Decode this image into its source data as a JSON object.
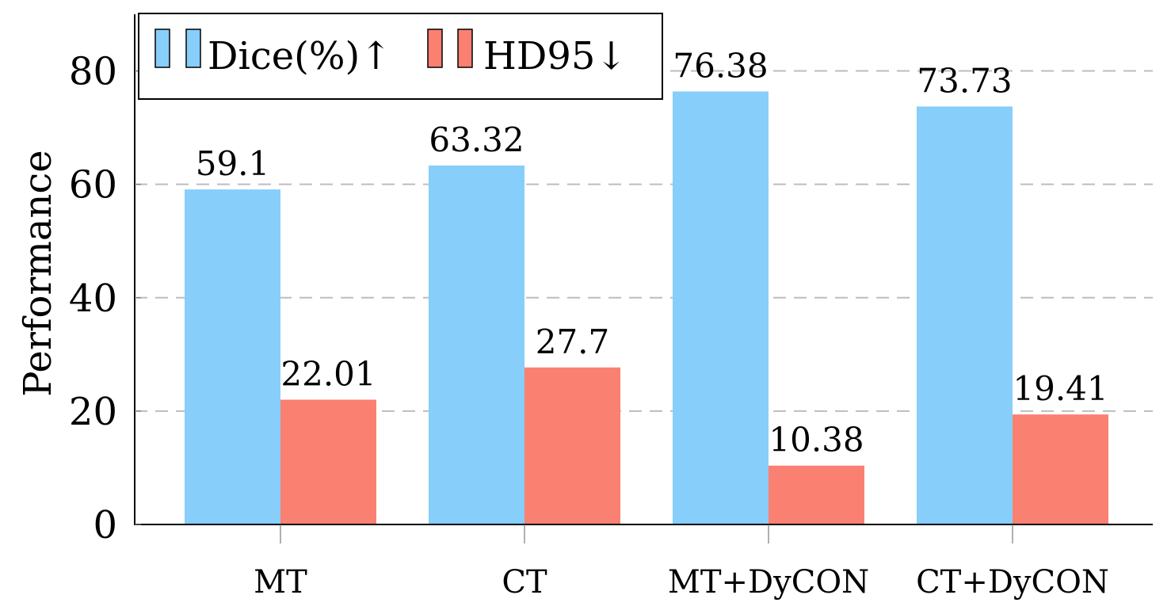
{
  "chart_data": {
    "type": "bar",
    "categories": [
      "MT",
      "CT",
      "MT+DyCON",
      "CT+DyCON"
    ],
    "series": [
      {
        "name": "Dice(%)↑",
        "values": [
          59.1,
          63.32,
          76.38,
          73.73
        ],
        "labels": [
          "59.1",
          "63.32",
          "76.38",
          "73.73"
        ],
        "color": "#87cefa"
      },
      {
        "name": "HD95↓",
        "values": [
          22.01,
          27.7,
          10.38,
          19.41
        ],
        "labels": [
          "22.01",
          "27.7",
          "10.38",
          "19.41"
        ],
        "color": "#fa8072"
      }
    ],
    "ylabel": "Performance",
    "xlabel": "",
    "ylim": [
      0,
      90
    ],
    "yticks": [
      0,
      20,
      40,
      60,
      80
    ],
    "ytick_labels": [
      "0",
      "20",
      "40",
      "60",
      "80"
    ],
    "grid": "y-dashed",
    "legend_position": "top-left"
  }
}
